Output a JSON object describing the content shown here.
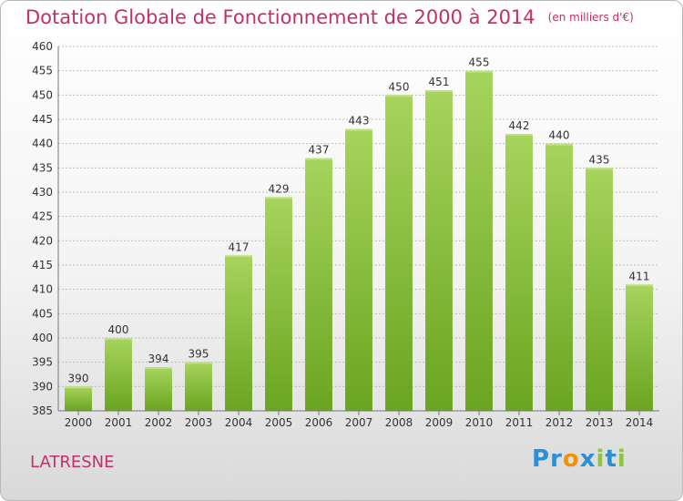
{
  "page": {
    "title": "Dotation Globale de Fonctionnement de 2000 à 2014",
    "unit": "(en milliers d'€)",
    "location": "LATRESNE",
    "logo": {
      "text": "Proxiti",
      "letters": [
        {
          "ch": "P",
          "color": "#2b8fd6"
        },
        {
          "ch": "r",
          "color": "#2b8fd6"
        },
        {
          "ch": "o",
          "color": "#f39200"
        },
        {
          "ch": "x",
          "color": "#2b8fd6"
        },
        {
          "ch": "i",
          "color": "#8cc63f"
        },
        {
          "ch": "t",
          "color": "#2b8fd6"
        },
        {
          "ch": "i",
          "color": "#8cc63f"
        }
      ]
    }
  },
  "colors": {
    "title": "#c2306a",
    "bar_light": "#a6d45c",
    "bar_dark": "#6aa520",
    "grid": "#bdbdbd",
    "axis": "#777777"
  },
  "chart_data": {
    "type": "bar",
    "title": "Dotation Globale de Fonctionnement de 2000 à 2014",
    "ylabel": "en milliers d'€",
    "xlabel": "",
    "categories": [
      "2000",
      "2001",
      "2002",
      "2003",
      "2004",
      "2005",
      "2006",
      "2007",
      "2008",
      "2009",
      "2010",
      "2011",
      "2012",
      "2013",
      "2014"
    ],
    "values": [
      390,
      400,
      394,
      395,
      417,
      429,
      437,
      443,
      450,
      451,
      455,
      442,
      440,
      435,
      411
    ],
    "ylim": [
      385,
      460
    ],
    "yticks": [
      385,
      390,
      395,
      400,
      405,
      410,
      415,
      420,
      425,
      430,
      435,
      440,
      445,
      450,
      455,
      460
    ],
    "grid": true,
    "legend": "none"
  }
}
